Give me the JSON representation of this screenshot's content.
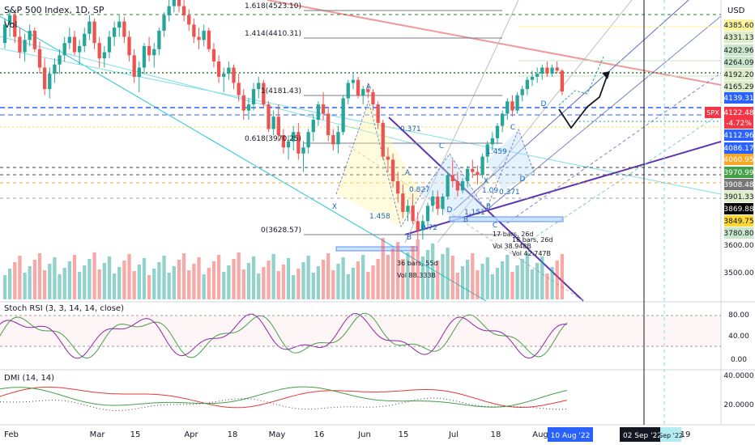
{
  "header": {
    "title": "S&P 500 Index, 1D, SP",
    "vol_label": "Vol",
    "currency": "USD",
    "ticker": "SPX"
  },
  "chart_data": {
    "type": "candlestick",
    "title": "S&P 500 Index, 1D, SP",
    "ylim": [
      3440,
      4420
    ],
    "y_scale": "linear",
    "price_ticks": [
      3500.0,
      3600.0
    ],
    "price_markers": [
      {
        "value": "4385.60",
        "color": "#fff59d"
      },
      {
        "value": "4331.13",
        "color": "#dcedc8"
      },
      {
        "value": "4282.96",
        "color": "#c8e6c9"
      },
      {
        "value": "4264.09",
        "color": "#c8e6c9"
      },
      {
        "value": "4192.20",
        "color": "#dcedc8"
      },
      {
        "value": "4165.29",
        "color": "#dcedc8"
      },
      {
        "value": "4139.31",
        "color": "#2962ff"
      },
      {
        "value": "4122.48",
        "color": "#f23645"
      },
      {
        "value": "-4.72%",
        "color": "#f23645"
      },
      {
        "value": "4112.96",
        "color": "#2962ff"
      },
      {
        "value": "4086.17",
        "color": "#2962ff"
      },
      {
        "value": "4060.95",
        "color": "#f9a825"
      },
      {
        "value": "3970.99",
        "color": "#43a047"
      },
      {
        "value": "3908.48",
        "color": "#757575"
      },
      {
        "value": "3901.33",
        "color": "#dcedc8"
      },
      {
        "value": "3869.88",
        "color": "#000000"
      },
      {
        "value": "3849.75",
        "color": "#fdd835"
      },
      {
        "value": "3780.80",
        "color": "#c8e6c9"
      }
    ],
    "fib_levels": [
      {
        "label": "1.618(4523.10)",
        "value": 4523.1
      },
      {
        "label": "1.414(4410.31)",
        "value": 4410.31
      },
      {
        "label": "1(4181.43)",
        "value": 4181.43
      },
      {
        "label": "0.618(3970.25)",
        "value": 3970.25
      },
      {
        "label": "0(3628.57)",
        "value": 3628.57
      }
    ],
    "pattern_labels": [
      "A",
      "X",
      "B",
      "C",
      "D",
      "A",
      "B",
      "C",
      "D",
      "X",
      "B",
      "C",
      "D"
    ],
    "pattern_ratios": [
      "0.371",
      "1.459",
      "0.827",
      "1.458",
      "0.72",
      "1.151",
      "1.09",
      "0.371"
    ],
    "range_labels": [
      "36 bars, 55d",
      "Vol 88.333B",
      "17 bars, 26d",
      "Vol 38.948B",
      "18 bars, 26d",
      "Vol 42.747B"
    ],
    "x_labels": [
      "Feb",
      "Mar",
      "15",
      "Apr",
      "18",
      "May",
      "16",
      "Jun",
      "15",
      "Jul",
      "18",
      "Aug",
      "19"
    ],
    "x_highlights": [
      "10 Aug '22",
      "02 Sep '22",
      "Sep '22"
    ],
    "candles": [
      [
        4280,
        4360,
        4262,
        4340
      ],
      [
        4340,
        4390,
        4300,
        4370
      ],
      [
        4370,
        4385,
        4280,
        4300
      ],
      [
        4300,
        4330,
        4230,
        4250
      ],
      [
        4250,
        4310,
        4220,
        4290
      ],
      [
        4290,
        4340,
        4270,
        4320
      ],
      [
        4320,
        4330,
        4250,
        4260
      ],
      [
        4260,
        4285,
        4180,
        4200
      ],
      [
        4200,
        4230,
        4110,
        4130
      ],
      [
        4130,
        4200,
        4100,
        4180
      ],
      [
        4180,
        4230,
        4150,
        4210
      ],
      [
        4210,
        4260,
        4180,
        4240
      ],
      [
        4240,
        4300,
        4220,
        4280
      ],
      [
        4280,
        4330,
        4260,
        4300
      ],
      [
        4300,
        4320,
        4240,
        4250
      ],
      [
        4250,
        4290,
        4210,
        4270
      ],
      [
        4270,
        4330,
        4250,
        4310
      ],
      [
        4310,
        4370,
        4290,
        4350
      ],
      [
        4350,
        4360,
        4260,
        4280
      ],
      [
        4280,
        4300,
        4200,
        4230
      ],
      [
        4230,
        4270,
        4200,
        4250
      ],
      [
        4250,
        4320,
        4230,
        4300
      ],
      [
        4300,
        4350,
        4270,
        4330
      ],
      [
        4330,
        4370,
        4300,
        4350
      ],
      [
        4350,
        4365,
        4280,
        4300
      ],
      [
        4300,
        4320,
        4220,
        4240
      ],
      [
        4240,
        4260,
        4150,
        4170
      ],
      [
        4170,
        4220,
        4120,
        4200
      ],
      [
        4200,
        4280,
        4180,
        4270
      ],
      [
        4270,
        4300,
        4220,
        4240
      ],
      [
        4240,
        4280,
        4200,
        4260
      ],
      [
        4260,
        4330,
        4240,
        4320
      ],
      [
        4320,
        4380,
        4300,
        4370
      ],
      [
        4370,
        4420,
        4350,
        4400
      ],
      [
        4400,
        4430,
        4380,
        4420
      ],
      [
        4420,
        4440,
        4380,
        4400
      ],
      [
        4400,
        4420,
        4350,
        4370
      ],
      [
        4370,
        4390,
        4320,
        4340
      ],
      [
        4340,
        4360,
        4280,
        4300
      ],
      [
        4300,
        4330,
        4260,
        4290
      ],
      [
        4290,
        4340,
        4270,
        4320
      ],
      [
        4320,
        4330,
        4250,
        4260
      ],
      [
        4260,
        4280,
        4200,
        4220
      ],
      [
        4220,
        4240,
        4150,
        4170
      ],
      [
        4170,
        4200,
        4120,
        4180
      ],
      [
        4180,
        4220,
        4160,
        4200
      ],
      [
        4200,
        4210,
        4130,
        4150
      ],
      [
        4150,
        4180,
        4090,
        4110
      ],
      [
        4110,
        4130,
        4030,
        4060
      ],
      [
        4060,
        4100,
        4030,
        4080
      ],
      [
        4080,
        4150,
        4060,
        4130
      ],
      [
        4130,
        4170,
        4100,
        4150
      ],
      [
        4150,
        4160,
        4070,
        4080
      ],
      [
        4080,
        4090,
        3990,
        4000
      ],
      [
        4000,
        4060,
        3980,
        4040
      ],
      [
        4040,
        4080,
        3960,
        3980
      ],
      [
        3980,
        4000,
        3920,
        3940
      ],
      [
        3940,
        3980,
        3900,
        3960
      ],
      [
        3960,
        4010,
        3930,
        3990
      ],
      [
        3990,
        4020,
        3900,
        3920
      ],
      [
        3920,
        3960,
        3860,
        3940
      ],
      [
        3940,
        4000,
        3920,
        3990
      ],
      [
        3990,
        4050,
        3960,
        4030
      ],
      [
        4030,
        4090,
        4010,
        4080
      ],
      [
        4080,
        4120,
        4030,
        4050
      ],
      [
        4050,
        4070,
        3960,
        3980
      ],
      [
        3980,
        4000,
        3930,
        3950
      ],
      [
        3950,
        4010,
        3920,
        3990
      ],
      [
        3990,
        4110,
        3980,
        4100
      ],
      [
        4100,
        4160,
        4080,
        4150
      ],
      [
        4150,
        4180,
        4130,
        4160
      ],
      [
        4160,
        4170,
        4100,
        4110
      ],
      [
        4110,
        4140,
        4080,
        4130
      ],
      [
        4130,
        4150,
        4100,
        4120
      ],
      [
        4120,
        4130,
        4060,
        4080
      ],
      [
        4080,
        4090,
        4000,
        4020
      ],
      [
        4020,
        4030,
        3900,
        3910
      ],
      [
        3910,
        3940,
        3860,
        3900
      ],
      [
        3900,
        3920,
        3810,
        3830
      ],
      [
        3830,
        3860,
        3760,
        3790
      ],
      [
        3790,
        3820,
        3710,
        3730
      ],
      [
        3730,
        3770,
        3700,
        3750
      ],
      [
        3750,
        3790,
        3690,
        3700
      ],
      [
        3700,
        3730,
        3640,
        3670
      ],
      [
        3670,
        3720,
        3640,
        3700
      ],
      [
        3700,
        3760,
        3680,
        3750
      ],
      [
        3750,
        3800,
        3730,
        3780
      ],
      [
        3780,
        3800,
        3720,
        3740
      ],
      [
        3740,
        3790,
        3720,
        3780
      ],
      [
        3780,
        3860,
        3770,
        3850
      ],
      [
        3850,
        3900,
        3810,
        3830
      ],
      [
        3830,
        3860,
        3780,
        3800
      ],
      [
        3800,
        3840,
        3790,
        3830
      ],
      [
        3830,
        3880,
        3810,
        3870
      ],
      [
        3870,
        3900,
        3840,
        3860
      ],
      [
        3860,
        3880,
        3820,
        3850
      ],
      [
        3850,
        3920,
        3840,
        3910
      ],
      [
        3910,
        3960,
        3890,
        3950
      ],
      [
        3950,
        3990,
        3930,
        3970
      ],
      [
        3970,
        4020,
        3950,
        4010
      ],
      [
        4010,
        4060,
        3990,
        4050
      ],
      [
        4050,
        4100,
        4030,
        4090
      ],
      [
        4090,
        4110,
        4040,
        4060
      ],
      [
        4060,
        4120,
        4050,
        4110
      ],
      [
        4110,
        4140,
        4090,
        4130
      ],
      [
        4130,
        4170,
        4110,
        4160
      ],
      [
        4160,
        4190,
        4140,
        4170
      ],
      [
        4170,
        4200,
        4150,
        4180
      ],
      [
        4180,
        4210,
        4160,
        4200
      ],
      [
        4200,
        4220,
        4170,
        4180
      ],
      [
        4180,
        4210,
        4170,
        4200
      ],
      [
        4200,
        4220,
        4180,
        4190
      ],
      [
        4190,
        4195,
        4110,
        4122
      ]
    ],
    "indicators": {
      "stoch_rsi": {
        "label": "Stoch RSI (3, 3, 14, 14, close)",
        "ticks": [
          "80.00",
          "40.00",
          "0.00"
        ]
      },
      "dmi": {
        "label": "DMI (14, 14)",
        "ticks": [
          "40.0000",
          "20.0000"
        ]
      }
    }
  }
}
